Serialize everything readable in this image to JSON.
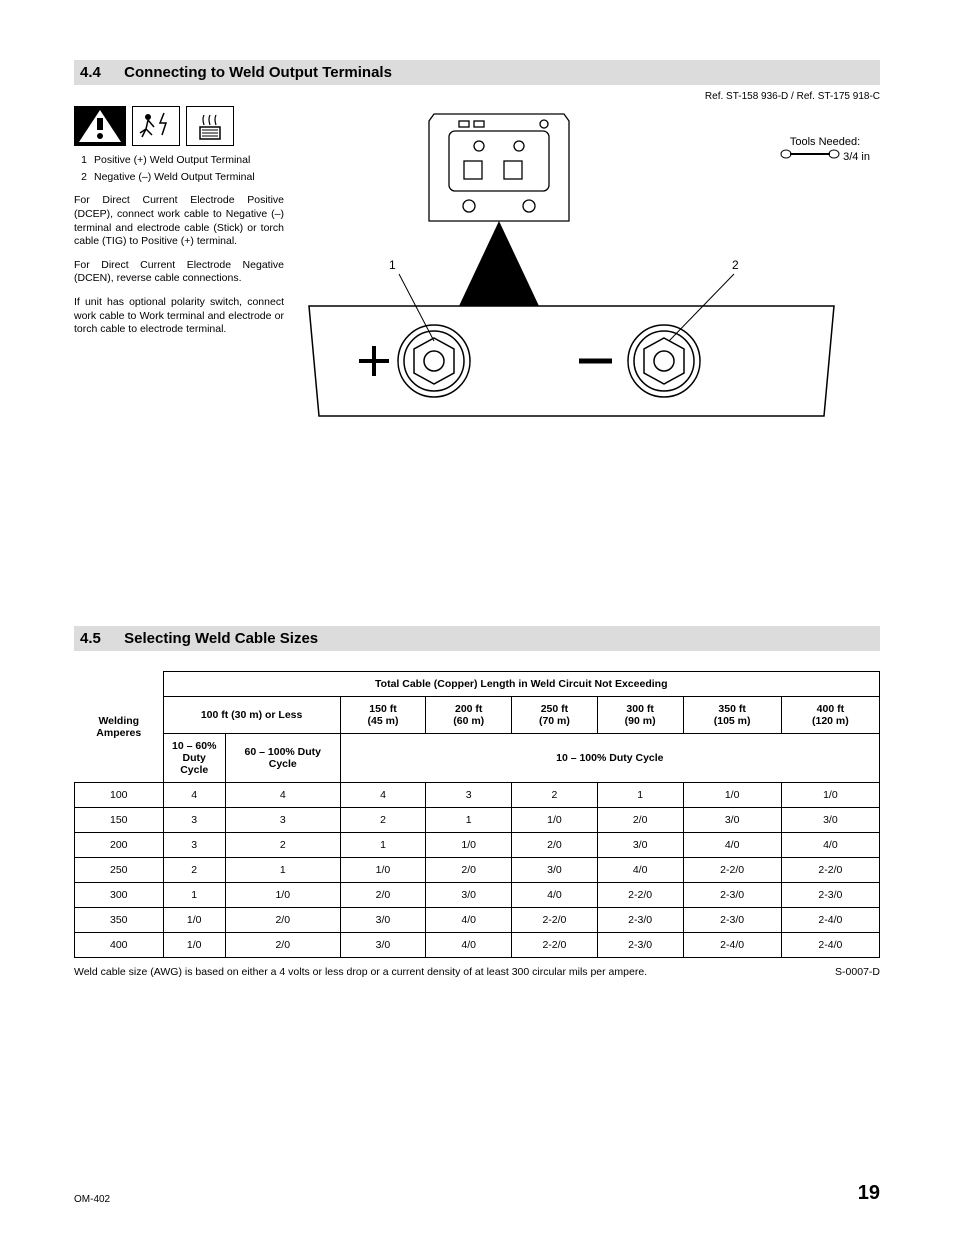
{
  "section44": {
    "number": "4.4",
    "title": "Connecting to Weld Output Terminals",
    "ref": "Ref. ST-158 936-D / Ref. ST-175 918-C",
    "legend": [
      {
        "n": "1",
        "text": "Positive (+) Weld Output Terminal"
      },
      {
        "n": "2",
        "text": "Negative (–) Weld Output Terminal"
      }
    ],
    "para1": "For Direct Current Electrode Positive (DCEP), connect work cable to Negative (–) terminal and electrode cable (Stick) or torch cable (TIG) to Positive (+) terminal.",
    "para2": "For Direct Current Electrode Negative (DCEN), reverse cable connections.",
    "para3": "If unit has optional polarity switch, connect work cable to Work terminal and electrode or torch cable to electrode terminal.",
    "tools_label": "Tools Needed:",
    "tools_size": "3/4 in",
    "callout1": "1",
    "callout2": "2"
  },
  "section45": {
    "number": "4.5",
    "title": "Selecting Weld Cable Sizes",
    "table": {
      "top_header": "Total Cable (Copper) Length in Weld Circuit Not Exceeding",
      "col_left": "Welding\nAmperes",
      "col_100ft": "100 ft (30 m) or Less",
      "cols_dist": [
        {
          "ft": "150 ft",
          "m": "(45 m)"
        },
        {
          "ft": "200 ft",
          "m": "(60 m)"
        },
        {
          "ft": "250 ft",
          "m": "(70 m)"
        },
        {
          "ft": "300 ft",
          "m": "(90 m)"
        },
        {
          "ft": "350 ft",
          "m": "(105 m)"
        },
        {
          "ft": "400 ft",
          "m": "(120 m)"
        }
      ],
      "duty_10_60": "10 – 60%\nDuty Cycle",
      "duty_60_100": "60 – 100% Duty Cycle",
      "duty_10_100": "10 – 100% Duty Cycle",
      "rows": [
        {
          "amp": "100",
          "cells": [
            "4",
            "4",
            "4",
            "3",
            "2",
            "1",
            "1/0",
            "1/0"
          ]
        },
        {
          "amp": "150",
          "cells": [
            "3",
            "3",
            "2",
            "1",
            "1/0",
            "2/0",
            "3/0",
            "3/0"
          ]
        },
        {
          "amp": "200",
          "cells": [
            "3",
            "2",
            "1",
            "1/0",
            "2/0",
            "3/0",
            "4/0",
            "4/0"
          ]
        },
        {
          "amp": "250",
          "cells": [
            "2",
            "1",
            "1/0",
            "2/0",
            "3/0",
            "4/0",
            "2-2/0",
            "2-2/0"
          ]
        },
        {
          "amp": "300",
          "cells": [
            "1",
            "1/0",
            "2/0",
            "3/0",
            "4/0",
            "2-2/0",
            "2-3/0",
            "2-3/0"
          ]
        },
        {
          "amp": "350",
          "cells": [
            "1/0",
            "2/0",
            "3/0",
            "4/0",
            "2-2/0",
            "2-3/0",
            "2-3/0",
            "2-4/0"
          ]
        },
        {
          "amp": "400",
          "cells": [
            "1/0",
            "2/0",
            "3/0",
            "4/0",
            "2-2/0",
            "2-3/0",
            "2-4/0",
            "2-4/0"
          ]
        }
      ]
    },
    "footnote": "Weld cable size (AWG) is based on either a 4 volts or less drop or a current density of at least 300 circular mils per ampere.",
    "footnote_ref": "S-0007-D"
  },
  "footer": {
    "doc": "OM-402",
    "page": "19"
  },
  "colors": {
    "header_bg": "#dcdcdc",
    "text": "#000000",
    "bg": "#ffffff"
  }
}
